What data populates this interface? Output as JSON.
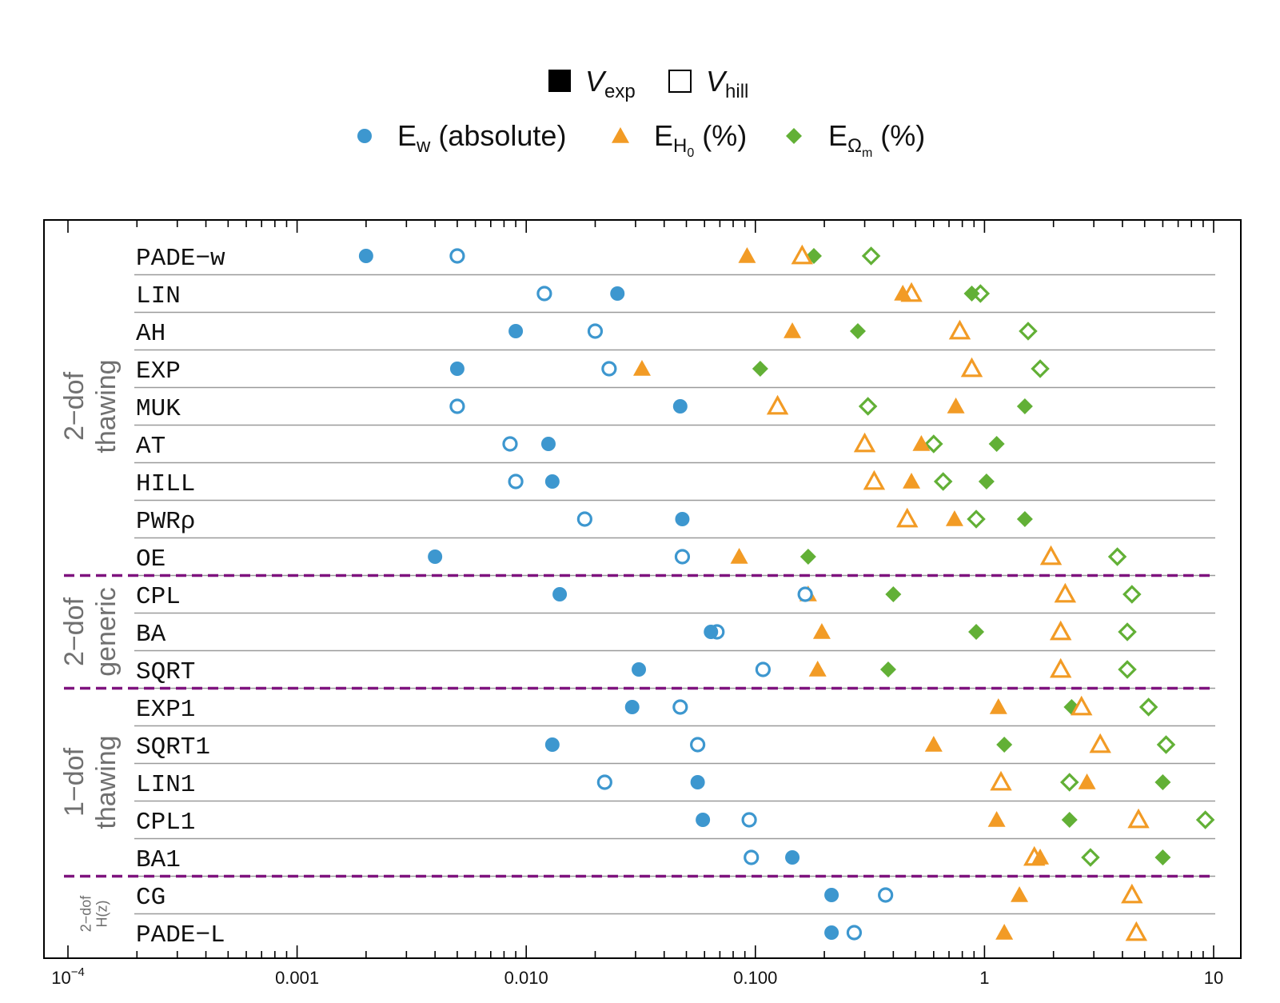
{
  "chart_data": {
    "type": "scatter",
    "x_scale": "log",
    "xlim": [
      0.0001,
      10
    ],
    "x_ticks": [
      {
        "value": 0.0001,
        "base": "10",
        "exp": "−4"
      },
      {
        "value": 0.001,
        "label": "0.001"
      },
      {
        "value": 0.01,
        "label": "0.010"
      },
      {
        "value": 0.1,
        "label": "0.100"
      },
      {
        "value": 1,
        "label": "1"
      },
      {
        "value": 10,
        "label": "10"
      }
    ],
    "legend": {
      "fill": [
        {
          "key": "exp",
          "base": "V",
          "sub": "exp"
        },
        {
          "key": "hill",
          "base": "V",
          "sub": "hill"
        }
      ],
      "markers": [
        {
          "key": "Ew",
          "base": "E",
          "sub": "w",
          "suffix": " (absolute)"
        },
        {
          "key": "EH0",
          "base": "E",
          "sub": "H",
          "subsub": "0",
          "suffix": " (%)"
        },
        {
          "key": "EOm",
          "base": "E",
          "sub": "Ω",
          "subsub": "m",
          "suffix": " (%)"
        }
      ]
    },
    "colors": {
      "Ew": "#3d97cf",
      "EH0": "#f29b25",
      "EOm": "#62b036",
      "separator": "#7e137e",
      "grid": "#9a9a9a"
    },
    "groups": [
      {
        "lines": [
          "2−dof",
          "thawing"
        ],
        "rows": [
          0,
          8
        ]
      },
      {
        "lines": [
          "2−dof",
          "generic"
        ],
        "rows": [
          9,
          11
        ]
      },
      {
        "lines": [
          "1−dof",
          "thawing"
        ],
        "rows": [
          12,
          16
        ]
      },
      {
        "lines": [
          "2−dof",
          "H(z)"
        ],
        "rows": [
          17,
          18
        ]
      }
    ],
    "models": [
      {
        "name": "PADE−w",
        "exp": {
          "Ew": 0.002,
          "EH0": 0.092,
          "EOm": 0.18
        },
        "hill": {
          "Ew": 0.005,
          "EH0": 0.16,
          "EOm": 0.32
        }
      },
      {
        "name": "LIN",
        "exp": {
          "Ew": 0.025,
          "EH0": 0.44,
          "EOm": 0.88
        },
        "hill": {
          "Ew": 0.012,
          "EH0": 0.48,
          "EOm": 0.96
        }
      },
      {
        "name": "AH",
        "exp": {
          "Ew": 0.009,
          "EH0": 0.145,
          "EOm": 0.28
        },
        "hill": {
          "Ew": 0.02,
          "EH0": 0.78,
          "EOm": 1.55
        }
      },
      {
        "name": "EXP",
        "exp": {
          "Ew": 0.005,
          "EH0": 0.032,
          "EOm": 0.105
        },
        "hill": {
          "Ew": 0.023,
          "EH0": 0.88,
          "EOm": 1.75
        }
      },
      {
        "name": "MUK",
        "exp": {
          "Ew": 0.047,
          "EH0": 0.75,
          "EOm": 1.5
        },
        "hill": {
          "Ew": 0.005,
          "EH0": 0.125,
          "EOm": 0.31
        }
      },
      {
        "name": "AT",
        "exp": {
          "Ew": 0.0125,
          "EH0": 0.53,
          "EOm": 1.13
        },
        "hill": {
          "Ew": 0.0085,
          "EH0": 0.3,
          "EOm": 0.6
        }
      },
      {
        "name": "HILL",
        "exp": {
          "Ew": 0.013,
          "EH0": 0.48,
          "EOm": 1.02
        },
        "hill": {
          "Ew": 0.009,
          "EH0": 0.33,
          "EOm": 0.66
        }
      },
      {
        "name": "PWRρ",
        "exp": {
          "Ew": 0.048,
          "EH0": 0.74,
          "EOm": 1.5
        },
        "hill": {
          "Ew": 0.018,
          "EH0": 0.46,
          "EOm": 0.92
        }
      },
      {
        "name": "OE",
        "exp": {
          "Ew": 0.004,
          "EH0": 0.085,
          "EOm": 0.17
        },
        "hill": {
          "Ew": 0.048,
          "EH0": 1.95,
          "EOm": 3.8
        }
      },
      {
        "name": "CPL",
        "exp": {
          "Ew": 0.014,
          "EH0": 0.17,
          "EOm": 0.4
        },
        "hill": {
          "Ew": 0.165,
          "EH0": 2.25,
          "EOm": 4.4
        }
      },
      {
        "name": "BA",
        "exp": {
          "Ew": 0.064,
          "EH0": 0.195,
          "EOm": 0.92
        },
        "hill": {
          "Ew": 0.068,
          "EH0": 2.15,
          "EOm": 4.2
        }
      },
      {
        "name": "SQRT",
        "exp": {
          "Ew": 0.031,
          "EH0": 0.187,
          "EOm": 0.38
        },
        "hill": {
          "Ew": 0.108,
          "EH0": 2.15,
          "EOm": 4.2
        }
      },
      {
        "name": "EXP1",
        "exp": {
          "Ew": 0.029,
          "EH0": 1.15,
          "EOm": 2.4
        },
        "hill": {
          "Ew": 0.047,
          "EH0": 2.65,
          "EOm": 5.2
        }
      },
      {
        "name": "SQRT1",
        "exp": {
          "Ew": 0.013,
          "EH0": 0.6,
          "EOm": 1.22
        },
        "hill": {
          "Ew": 0.056,
          "EH0": 3.2,
          "EOm": 6.2
        }
      },
      {
        "name": "LIN1",
        "exp": {
          "Ew": 0.056,
          "EH0": 2.8,
          "EOm": 6.0
        },
        "hill": {
          "Ew": 0.022,
          "EH0": 1.18,
          "EOm": 2.35
        }
      },
      {
        "name": "CPL1",
        "exp": {
          "Ew": 0.059,
          "EH0": 1.13,
          "EOm": 2.35
        },
        "hill": {
          "Ew": 0.094,
          "EH0": 4.7,
          "EOm": 9.2
        }
      },
      {
        "name": "BA1",
        "exp": {
          "Ew": 0.145,
          "EH0": 1.75,
          "EOm": 6.0
        },
        "hill": {
          "Ew": 0.096,
          "EH0": 1.65,
          "EOm": 2.9
        }
      },
      {
        "name": "CG",
        "exp": {
          "Ew": 0.215,
          "EH0": 1.42,
          "EOm": null
        },
        "hill": {
          "Ew": 0.37,
          "EH0": 4.4,
          "EOm": null
        }
      },
      {
        "name": "PADE−L",
        "exp": {
          "Ew": 0.215,
          "EH0": 1.22,
          "EOm": null
        },
        "hill": {
          "Ew": 0.27,
          "EH0": 4.6,
          "EOm": null
        }
      }
    ]
  }
}
